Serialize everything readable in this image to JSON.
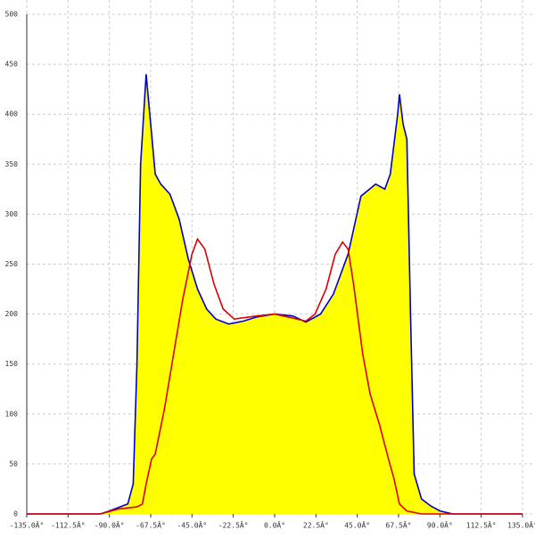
{
  "chart_data": {
    "type": "area-line",
    "xlim": [
      -135,
      135
    ],
    "ylim": [
      0,
      500
    ],
    "xticks": [
      {
        "value": -135,
        "label": "-135.0Â°"
      },
      {
        "value": -112.5,
        "label": "-112.5Â°"
      },
      {
        "value": -90,
        "label": "-90.0Â°"
      },
      {
        "value": -67.5,
        "label": "-67.5Â°"
      },
      {
        "value": -45,
        "label": "-45.0Â°"
      },
      {
        "value": -22.5,
        "label": "-22.5Â°"
      },
      {
        "value": 0,
        "label": "0.0Â°"
      },
      {
        "value": 22.5,
        "label": "22.5Â°"
      },
      {
        "value": 45,
        "label": "45.0Â°"
      },
      {
        "value": 67.5,
        "label": "67.5Â°"
      },
      {
        "value": 90,
        "label": "90.0Â°"
      },
      {
        "value": 112.5,
        "label": "112.5Â°"
      },
      {
        "value": 135,
        "label": "135.0Â°"
      }
    ],
    "yticks": [
      0,
      50,
      100,
      150,
      200,
      250,
      300,
      350,
      400,
      450,
      500
    ],
    "grid": true,
    "series": [
      {
        "color": "#0000cc",
        "fill": "#ffff00",
        "x": [
          -135,
          -95,
          -90,
          -80,
          -77,
          -75,
          -73,
          -70,
          -65,
          -62,
          -57,
          -52,
          -47,
          -42,
          -37,
          -32,
          -25,
          -17,
          -10,
          0,
          10,
          17,
          25,
          32,
          40,
          47,
          55,
          60,
          63,
          67,
          68,
          70,
          72,
          74,
          76,
          80,
          85,
          90,
          97,
          135
        ],
        "values": [
          0,
          0,
          3,
          10,
          30,
          150,
          350,
          440,
          340,
          330,
          320,
          295,
          255,
          225,
          205,
          195,
          190,
          193,
          197,
          200,
          198,
          192,
          200,
          220,
          260,
          318,
          330,
          325,
          340,
          400,
          420,
          390,
          375,
          200,
          40,
          15,
          8,
          3,
          0,
          0
        ]
      },
      {
        "color": "#dd0000",
        "x": [
          -135,
          -95,
          -85,
          -75,
          -72,
          -70,
          -67,
          -65,
          -60,
          -55,
          -50,
          -45,
          -42,
          -38,
          -33,
          -28,
          -22,
          -10,
          0,
          10,
          17,
          22,
          28,
          33,
          37,
          40,
          43,
          48,
          52,
          57,
          62,
          65,
          68,
          72,
          80,
          135
        ],
        "values": [
          0,
          0,
          5,
          7,
          10,
          30,
          55,
          60,
          105,
          160,
          215,
          260,
          275,
          265,
          230,
          205,
          195,
          198,
          200,
          196,
          193,
          200,
          225,
          260,
          272,
          265,
          230,
          160,
          120,
          90,
          55,
          35,
          10,
          3,
          0,
          0
        ]
      }
    ]
  }
}
